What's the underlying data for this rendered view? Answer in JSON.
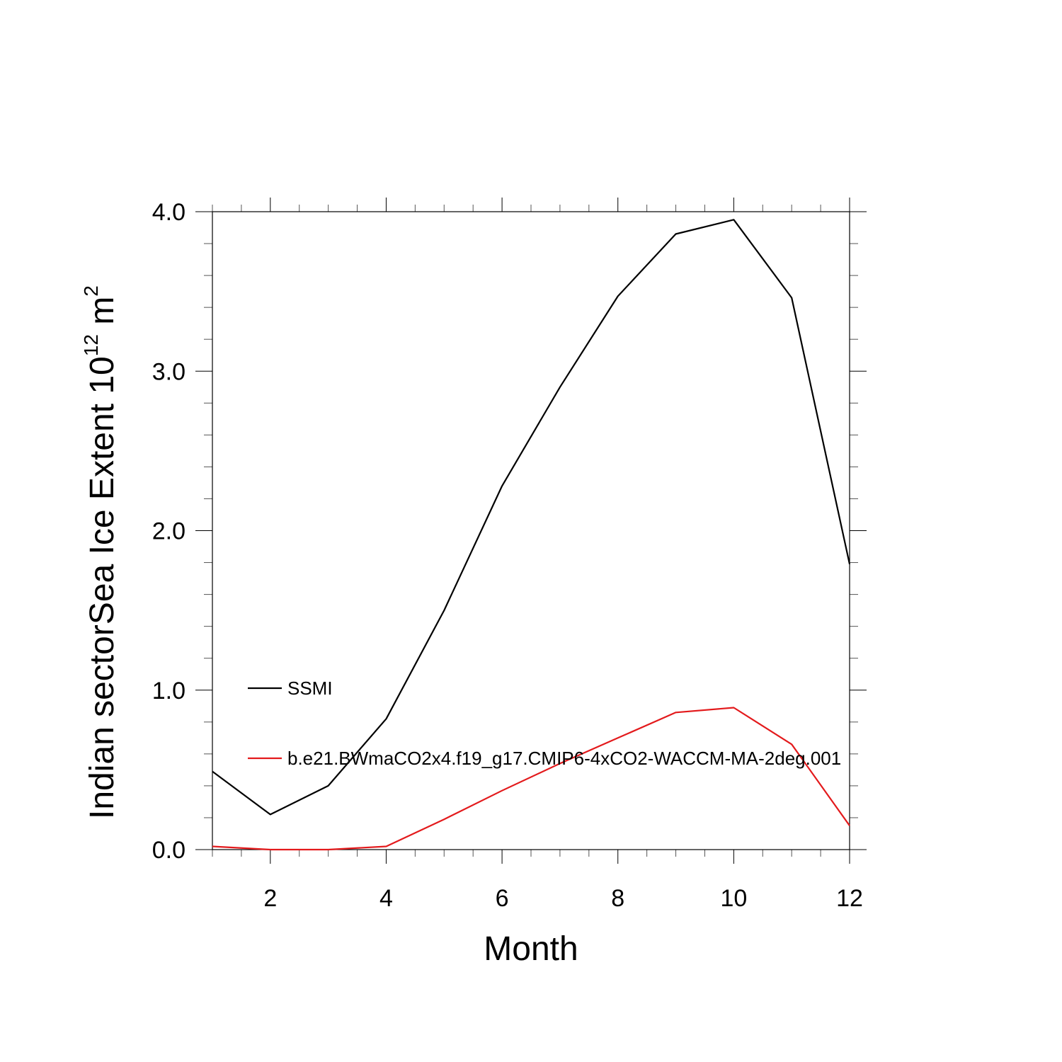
{
  "chart_data": {
    "type": "line",
    "title": "",
    "xlabel": "Month",
    "ylabel": {
      "main": "Indian sectorSea Ice Extent 10",
      "exponent": "12",
      "unit": " m",
      "unit_exponent": "2"
    },
    "xlim": [
      1,
      12
    ],
    "ylim": [
      0,
      4
    ],
    "x_ticks": [
      2,
      4,
      6,
      8,
      10,
      12
    ],
    "x_tick_labels": [
      "2",
      "4",
      "6",
      "8",
      "10",
      "12"
    ],
    "y_ticks": [
      0,
      1,
      2,
      3,
      4
    ],
    "y_tick_labels": [
      "0.0",
      "1.0",
      "2.0",
      "3.0",
      "4.0"
    ],
    "grid": false,
    "legend_position": "left-inside",
    "x": [
      1,
      2,
      3,
      4,
      5,
      6,
      7,
      8,
      9,
      10,
      11,
      12
    ],
    "series": [
      {
        "name": "SSMI",
        "color": "#000000",
        "values": [
          0.49,
          0.22,
          0.4,
          0.82,
          1.5,
          2.28,
          2.9,
          3.47,
          3.86,
          3.95,
          3.46,
          1.79
        ]
      },
      {
        "name": "b.e21.BWmaCO2x4.f19_g17.CMIP6-4xCO2-WACCM-MA-2deg.001",
        "color": "#e31a1c",
        "values": [
          0.02,
          0.0,
          0.0,
          0.02,
          0.19,
          0.37,
          0.54,
          0.7,
          0.86,
          0.89,
          0.66,
          0.15
        ]
      }
    ]
  }
}
